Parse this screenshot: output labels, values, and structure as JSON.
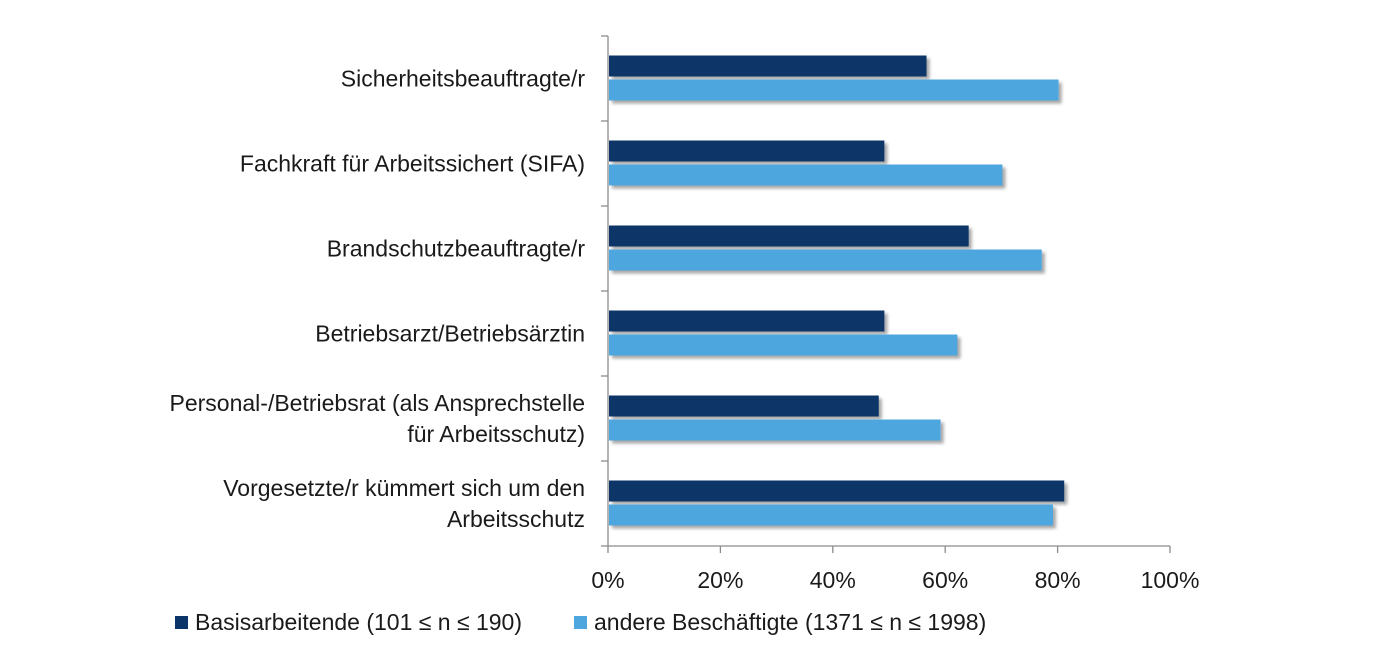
{
  "chart_data": {
    "type": "bar",
    "orientation": "horizontal",
    "categories": [
      [
        "Sicherheitsbeauftragte/r"
      ],
      [
        "Fachkraft für Arbeitssichert (SIFA)"
      ],
      [
        "Brandschutzbeauftragte/r"
      ],
      [
        "Betriebsarzt/Betriebsärztin"
      ],
      [
        "Personal-/Betriebsrat (als Ansprechstelle",
        "für Arbeitsschutz)"
      ],
      [
        "Vorgesetzte/r kümmert sich um den",
        "Arbeitsschutz"
      ]
    ],
    "series": [
      {
        "name": "Basisarbeitende  (101 ≤ n ≤ 190)",
        "color": "#0b3468",
        "values": [
          56.5,
          49,
          64,
          49,
          48,
          81
        ]
      },
      {
        "name": "andere Beschäftigte  (1371 ≤ n ≤ 1998)",
        "color": "#4ea6de",
        "values": [
          80,
          70,
          77,
          62,
          59,
          79
        ]
      }
    ],
    "xlim": [
      0,
      100
    ],
    "xticks": [
      "0%",
      "20%",
      "40%",
      "60%",
      "80%",
      "100%"
    ],
    "grid": false,
    "legend_position": "bottom"
  }
}
